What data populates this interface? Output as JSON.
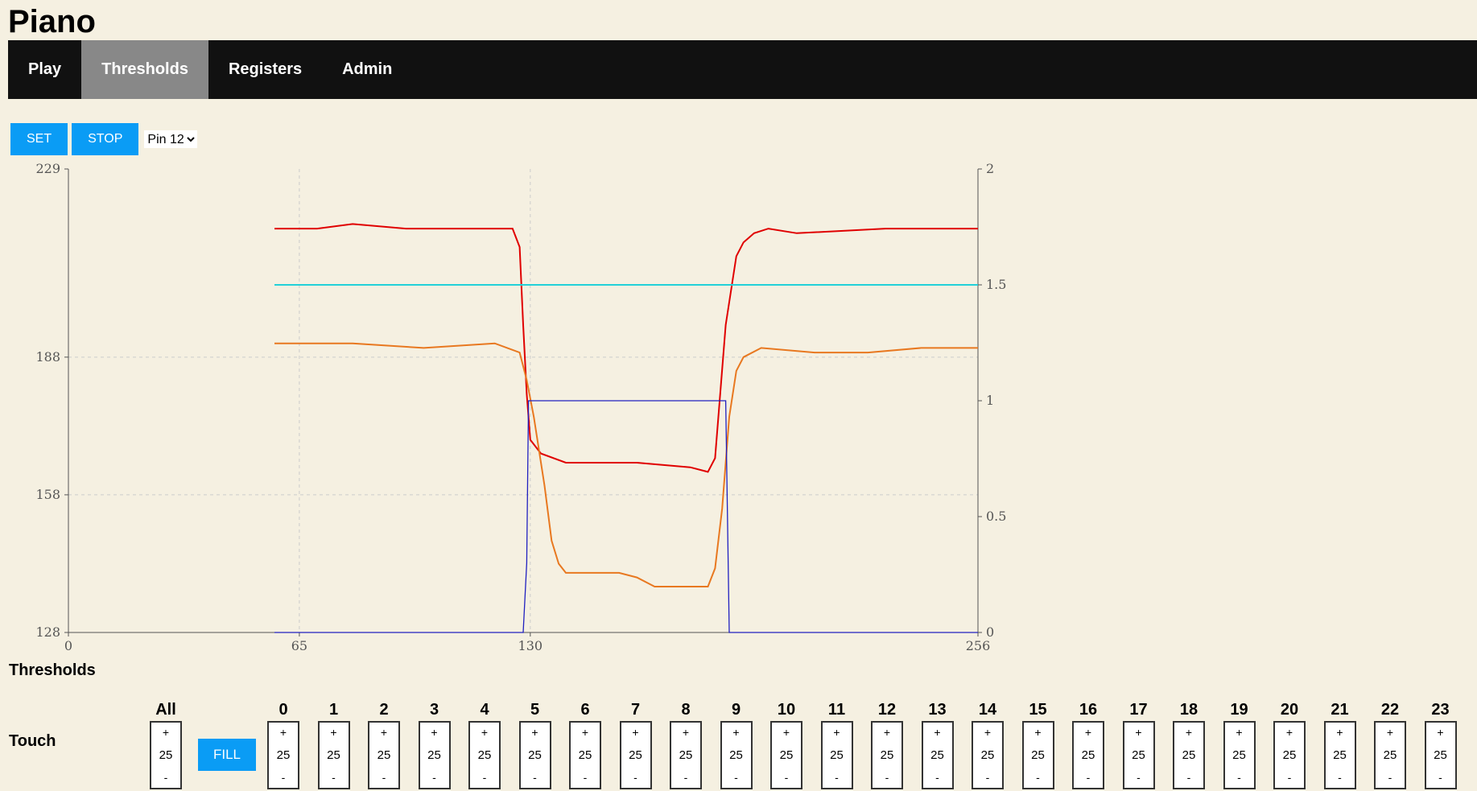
{
  "app": {
    "title": "Piano"
  },
  "nav": {
    "items": [
      {
        "label": "Play",
        "active": false
      },
      {
        "label": "Thresholds",
        "active": true
      },
      {
        "label": "Registers",
        "active": false
      },
      {
        "label": "Admin",
        "active": false
      }
    ]
  },
  "toolbar": {
    "set_label": "SET",
    "stop_label": "STOP",
    "pin_selected": "Pin 12"
  },
  "colors": {
    "accent": "#0a9cf5",
    "nav_bg": "#111111",
    "nav_active": "#888888",
    "page_bg": "#f5f0e1"
  },
  "chart_data": {
    "type": "line",
    "xlim": [
      0,
      256
    ],
    "x_ticks": [
      "0",
      "65",
      "130",
      "256"
    ],
    "ylim_left": [
      128,
      229
    ],
    "y_ticks_left": [
      "229",
      "188",
      "158",
      "128"
    ],
    "ylim_right": [
      0,
      2
    ],
    "y_ticks_right": [
      "2",
      "1.5",
      "1",
      "0.5",
      "0"
    ],
    "grid": true,
    "series": [
      {
        "axis": "left",
        "color": "#e00000",
        "x": [
          58,
          70,
          80,
          95,
          110,
          120,
          125,
          127,
          128,
          129,
          130,
          133,
          140,
          160,
          175,
          180,
          182,
          185,
          188,
          190,
          193,
          197,
          205,
          230,
          256
        ],
        "y": [
          216,
          216,
          217,
          216,
          216,
          216,
          216,
          212,
          195,
          180,
          170,
          167,
          165,
          165,
          164,
          163,
          166,
          195,
          210,
          213,
          215,
          216,
          215,
          216,
          216
        ]
      },
      {
        "axis": "left",
        "color": "#e87820",
        "x": [
          58,
          80,
          100,
          120,
          127,
          129,
          131,
          134,
          136,
          138,
          140,
          155,
          160,
          165,
          180,
          182,
          184,
          186,
          188,
          190,
          195,
          210,
          225,
          240,
          256
        ],
        "y": [
          191,
          191,
          190,
          191,
          189,
          183,
          175,
          160,
          148,
          143,
          141,
          141,
          140,
          138,
          138,
          142,
          155,
          175,
          185,
          188,
          190,
          189,
          189,
          190,
          190
        ]
      },
      {
        "axis": "right",
        "color": "#22d0d8",
        "x": [
          58,
          256
        ],
        "y": [
          1.5,
          1.5
        ]
      },
      {
        "axis": "right",
        "color": "#2020c0",
        "x": [
          58,
          128,
          129,
          129.5,
          185,
          186,
          256
        ],
        "y": [
          0,
          0,
          0.3,
          1,
          1,
          0,
          0
        ]
      }
    ]
  },
  "thresholds": {
    "heading": "Thresholds",
    "row_label": "Touch",
    "fill_label": "FILL",
    "plus": "+",
    "minus": "-",
    "all": {
      "label": "All",
      "value": "25"
    },
    "channels": [
      {
        "label": "0",
        "value": "25"
      },
      {
        "label": "1",
        "value": "25"
      },
      {
        "label": "2",
        "value": "25"
      },
      {
        "label": "3",
        "value": "25"
      },
      {
        "label": "4",
        "value": "25"
      },
      {
        "label": "5",
        "value": "25"
      },
      {
        "label": "6",
        "value": "25"
      },
      {
        "label": "7",
        "value": "25"
      },
      {
        "label": "8",
        "value": "25"
      },
      {
        "label": "9",
        "value": "25"
      },
      {
        "label": "10",
        "value": "25"
      },
      {
        "label": "11",
        "value": "25"
      },
      {
        "label": "12",
        "value": "25"
      },
      {
        "label": "13",
        "value": "25"
      },
      {
        "label": "14",
        "value": "25"
      },
      {
        "label": "15",
        "value": "25"
      },
      {
        "label": "16",
        "value": "25"
      },
      {
        "label": "17",
        "value": "25"
      },
      {
        "label": "18",
        "value": "25"
      },
      {
        "label": "19",
        "value": "25"
      },
      {
        "label": "20",
        "value": "25"
      },
      {
        "label": "21",
        "value": "25"
      },
      {
        "label": "22",
        "value": "25"
      },
      {
        "label": "23",
        "value": "25"
      }
    ]
  }
}
